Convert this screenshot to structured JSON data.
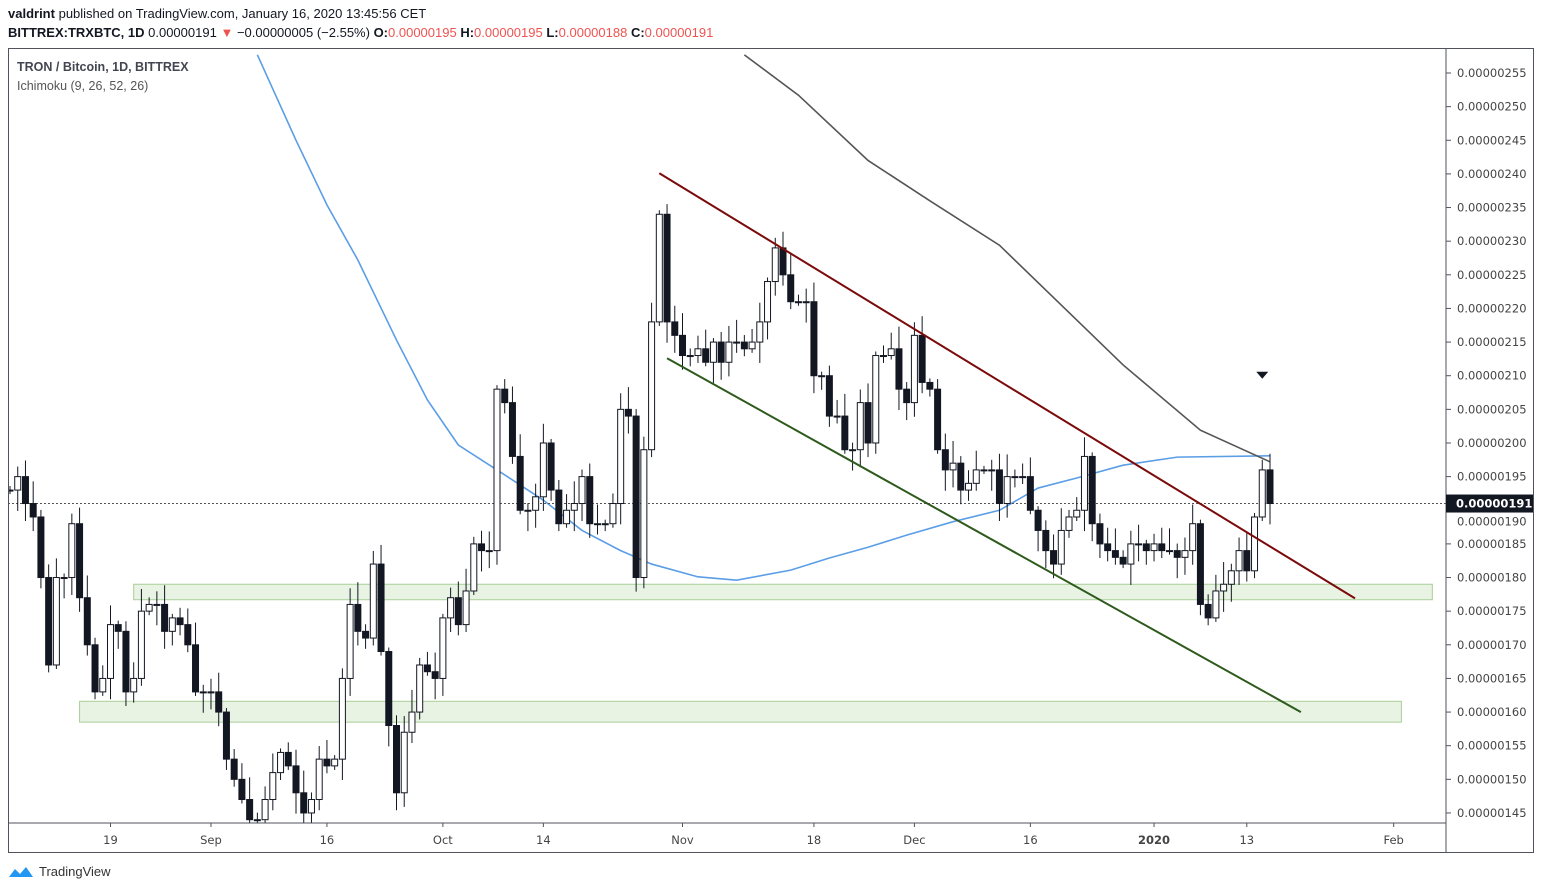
{
  "header": {
    "author": "valdrint",
    "published": "published on TradingView.com, January 16, 2020 13:45:56 CET",
    "symbol": "BITTREX:TRXBTC, 1D",
    "last": "0.00000191",
    "change": "−0.00000005 (−2.55%)",
    "o_label": "O:",
    "o": "0.00000195",
    "h_label": "H:",
    "h": "0.00000195",
    "l_label": "L:",
    "l": "0.00000188",
    "c_label": "C:",
    "c": "0.00000191"
  },
  "legend": {
    "title": "TRON / Bitcoin, 1D, BITTREX",
    "indicator": "Ichimoku (9, 26, 52, 26)"
  },
  "footer": {
    "brand": "TradingView"
  },
  "colors": {
    "up": "#ffffff",
    "down": "#131722",
    "down_arrow": "#ef5350",
    "blue_line": "#5b9ee6",
    "gray_line": "#555555",
    "resistance": "#7b0a0a",
    "support": "#2e5a1c",
    "zone": "#e8f3e3"
  },
  "chart_data": {
    "type": "candlestick",
    "start_date": "2019-08-06",
    "end_date": "2020-01-16",
    "close": [
      1.93e-06,
      1.95e-06,
      1.91e-06,
      1.89e-06,
      1.8e-06,
      1.67e-06,
      1.8e-06,
      1.8e-06,
      1.88e-06,
      1.77e-06,
      1.7e-06,
      1.63e-06,
      1.65e-06,
      1.73e-06,
      1.72e-06,
      1.63e-06,
      1.65e-06,
      1.75e-06,
      1.76e-06,
      1.76e-06,
      1.72e-06,
      1.74e-06,
      1.73e-06,
      1.7e-06,
      1.63e-06,
      1.63e-06,
      1.63e-06,
      1.6e-06,
      1.53e-06,
      1.5e-06,
      1.47e-06,
      1.44e-06,
      1.44e-06,
      1.47e-06,
      1.51e-06,
      1.54e-06,
      1.52e-06,
      1.48e-06,
      1.45e-06,
      1.47e-06,
      1.53e-06,
      1.52e-06,
      1.53e-06,
      1.65e-06,
      1.76e-06,
      1.72e-06,
      1.71e-06,
      1.82e-06,
      1.69e-06,
      1.58e-06,
      1.48e-06,
      1.57e-06,
      1.6e-06,
      1.67e-06,
      1.66e-06,
      1.65e-06,
      1.74e-06,
      1.77e-06,
      1.73e-06,
      1.78e-06,
      1.85e-06,
      1.84e-06,
      1.84e-06,
      2.08e-06,
      2.06e-06,
      1.98e-06,
      1.9e-06,
      1.9e-06,
      1.92e-06,
      2e-06,
      1.93e-06,
      1.88e-06,
      1.9e-06,
      1.91e-06,
      1.95e-06,
      1.88e-06,
      1.88e-06,
      1.88e-06,
      1.91e-06,
      2.05e-06,
      2.04e-06,
      1.8e-06,
      1.99e-06,
      2.18e-06,
      2.34e-06,
      2.18e-06,
      2.16e-06,
      2.13e-06,
      2.13e-06,
      2.14e-06,
      2.12e-06,
      2.15e-06,
      2.12e-06,
      2.15e-06,
      2.15e-06,
      2.14e-06,
      2.15e-06,
      2.18e-06,
      2.24e-06,
      2.29e-06,
      2.25e-06,
      2.21e-06,
      2.21e-06,
      2.21e-06,
      2.1e-06,
      2.1e-06,
      2.04e-06,
      2.04e-06,
      1.99e-06,
      1.99e-06,
      2.06e-06,
      2e-06,
      2.13e-06,
      2.13e-06,
      2.14e-06,
      2.08e-06,
      2.06e-06,
      2.16e-06,
      2.09e-06,
      2.08e-06,
      1.99e-06,
      1.96e-06,
      1.97e-06,
      1.93e-06,
      1.94e-06,
      1.96e-06,
      1.96e-06,
      1.96e-06,
      1.91e-06,
      1.95e-06,
      1.95e-06,
      1.95e-06,
      1.9e-06,
      1.87e-06,
      1.84e-06,
      1.82e-06,
      1.87e-06,
      1.89e-06,
      1.9e-06,
      1.98e-06,
      1.88e-06,
      1.85e-06,
      1.84e-06,
      1.83e-06,
      1.82e-06,
      1.85e-06,
      1.85e-06,
      1.84e-06,
      1.85e-06,
      1.84e-06,
      1.84e-06,
      1.83e-06,
      1.84e-06,
      1.88e-06,
      1.76e-06,
      1.74e-06,
      1.78e-06,
      1.79e-06,
      1.81e-06,
      1.84e-06,
      1.81e-06,
      1.89e-06,
      1.96e-06,
      1.91e-06
    ],
    "ichimoku_blue": [
      [
        "2019-09-07",
        2.577e-06
      ],
      [
        "2019-09-12",
        2.45e-06
      ],
      [
        "2019-09-16",
        2.354e-06
      ],
      [
        "2019-09-20",
        2.272e-06
      ],
      [
        "2019-09-25",
        2.153e-06
      ],
      [
        "2019-09-29",
        2.064e-06
      ],
      [
        "2019-10-03",
        1.997e-06
      ],
      [
        "2019-10-08",
        1.96e-06
      ],
      [
        "2019-10-14",
        1.915e-06
      ],
      [
        "2019-10-19",
        1.87e-06
      ],
      [
        "2019-10-24",
        1.84e-06
      ],
      [
        "2019-10-28",
        1.82e-06
      ],
      [
        "2019-11-03",
        1.801e-06
      ],
      [
        "2019-11-08",
        1.796e-06
      ],
      [
        "2019-11-15",
        1.811e-06
      ],
      [
        "2019-11-20",
        1.829e-06
      ],
      [
        "2019-11-25",
        1.845e-06
      ],
      [
        "2019-11-30",
        1.863e-06
      ],
      [
        "2019-12-06",
        1.883e-06
      ],
      [
        "2019-12-12",
        1.9e-06
      ],
      [
        "2019-12-17",
        1.933e-06
      ],
      [
        "2019-12-22",
        1.948e-06
      ],
      [
        "2019-12-28",
        1.967e-06
      ],
      [
        "2020-01-04",
        1.979e-06
      ],
      [
        "2020-01-16",
        1.981e-06
      ]
    ],
    "ichimoku_gray": [
      [
        "2019-11-09",
        2.577e-06
      ],
      [
        "2019-11-16",
        2.517e-06
      ],
      [
        "2019-11-25",
        2.42e-06
      ],
      [
        "2019-12-03",
        2.36e-06
      ],
      [
        "2019-12-12",
        2.294e-06
      ],
      [
        "2019-12-20",
        2.205e-06
      ],
      [
        "2019-12-28",
        2.116e-06
      ],
      [
        "2020-01-07",
        2.019e-06
      ],
      [
        "2020-01-16",
        1.972e-06
      ]
    ],
    "trendlines": [
      {
        "kind": "resistance",
        "from": [
          "2019-10-29",
          2.401e-06
        ],
        "to": [
          "2020-01-27",
          1.769e-06
        ]
      },
      {
        "kind": "support",
        "from": [
          "2019-10-30",
          2.126e-06
        ],
        "to": [
          "2020-01-20",
          1.6e-06
        ]
      }
    ],
    "zones": [
      {
        "from": "2019-08-22",
        "to": "2020-02-06",
        "top": 1.79e-06,
        "bottom": 1.767e-06
      },
      {
        "from": "2019-08-15",
        "to": "2020-02-02",
        "top": 1.616e-06,
        "bottom": 1.585e-06
      }
    ],
    "marker": {
      "date": "2020-01-15",
      "price": 2.1e-06,
      "shape": "down-triangle"
    },
    "last_price_label": "0.00000191",
    "ylim": [
      1.435e-06,
      2.575e-06
    ],
    "y_ticks": [
      "0.00000145",
      "0.00000150",
      "0.00000155",
      "0.00000160",
      "0.00000165",
      "0.00000170",
      "0.00000175",
      "0.00000180",
      "0.00000185",
      "0.00000190",
      "0.00000195",
      "0.00000200",
      "0.00000205",
      "0.00000210",
      "0.00000215",
      "0.00000220",
      "0.00000225",
      "0.00000230",
      "0.00000235",
      "0.00000240",
      "0.00000245",
      "0.00000250",
      "0.00000255"
    ],
    "x_ticks": [
      {
        "label": "19",
        "date": "2019-08-19"
      },
      {
        "label": "Sep",
        "date": "2019-09-01"
      },
      {
        "label": "16",
        "date": "2019-09-16"
      },
      {
        "label": "Oct",
        "date": "2019-10-01"
      },
      {
        "label": "14",
        "date": "2019-10-14"
      },
      {
        "label": "Nov",
        "date": "2019-11-01"
      },
      {
        "label": "18",
        "date": "2019-11-18"
      },
      {
        "label": "Dec",
        "date": "2019-12-01"
      },
      {
        "label": "16",
        "date": "2019-12-16"
      },
      {
        "label": "2020",
        "date": "2020-01-01",
        "bold": true
      },
      {
        "label": "13",
        "date": "2020-01-13"
      },
      {
        "label": "Feb",
        "date": "2020-02-01"
      }
    ]
  }
}
